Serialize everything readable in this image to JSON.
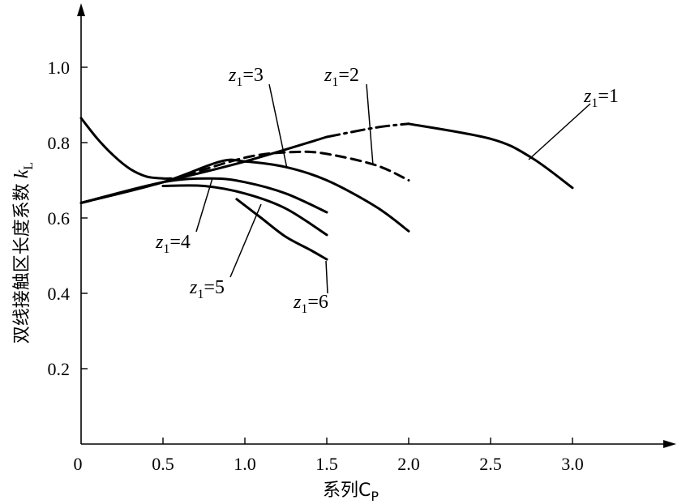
{
  "chart_data": {
    "type": "line",
    "xlabel": "系列C",
    "xlabel_sub": "P",
    "ylabel": "双线接触区长度系数",
    "ylabel_symbol": "k",
    "ylabel_sub": "L",
    "xlim": [
      0,
      3.0
    ],
    "ylim": [
      0,
      1.0
    ],
    "xticks": [
      0,
      0.5,
      1.0,
      1.5,
      2.0,
      2.5,
      3.0
    ],
    "xtick_labels": [
      "0",
      "0.5",
      "1.0",
      "1.5",
      "2.0",
      "2.5",
      "3.0"
    ],
    "yticks": [
      0.2,
      0.4,
      0.6,
      0.8,
      1.0
    ],
    "ytick_labels": [
      "0.2",
      "0.4",
      "0.6",
      "0.8",
      "1.0"
    ],
    "grid": false,
    "series": [
      {
        "name": "z1=1",
        "label_base": "z",
        "label_sub": "1",
        "label_rest": "=1",
        "style": "solid-dashdot-solid",
        "x": [
          0,
          0.5,
          1.0,
          1.5,
          1.8,
          2.0,
          2.5,
          2.75,
          3.0
        ],
        "y": [
          0.64,
          0.695,
          0.75,
          0.815,
          0.84,
          0.85,
          0.81,
          0.76,
          0.68
        ]
      },
      {
        "name": "z1=2",
        "label_base": "z",
        "label_sub": "1",
        "label_rest": "=2",
        "style": "dashed",
        "x": [
          0,
          0.5,
          1.0,
          1.3,
          1.5,
          1.8,
          2.0
        ],
        "y": [
          0.64,
          0.695,
          0.76,
          0.775,
          0.77,
          0.74,
          0.7
        ]
      },
      {
        "name": "z1=3",
        "label_base": "z",
        "label_sub": "1",
        "label_rest": "=3",
        "style": "solid",
        "x": [
          0,
          0.5,
          0.85,
          1.0,
          1.25,
          1.5,
          1.8,
          2.0
        ],
        "y": [
          0.64,
          0.695,
          0.75,
          0.75,
          0.735,
          0.7,
          0.63,
          0.565
        ]
      },
      {
        "name": "z1=4",
        "label_base": "z",
        "label_sub": "1",
        "label_rest": "=4",
        "style": "solid",
        "x": [
          0,
          0.5,
          0.8,
          1.0,
          1.25,
          1.5
        ],
        "y": [
          0.64,
          0.695,
          0.705,
          0.695,
          0.665,
          0.615
        ]
      },
      {
        "name": "z1=5",
        "label_base": "z",
        "label_sub": "1",
        "label_rest": "=5",
        "style": "solid",
        "x": [
          0.5,
          0.75,
          1.0,
          1.25,
          1.5
        ],
        "y": [
          0.685,
          0.685,
          0.665,
          0.625,
          0.555
        ]
      },
      {
        "name": "z1=6",
        "label_base": "z",
        "label_sub": "1",
        "label_rest": "=6",
        "style": "solid",
        "x": [
          0.95,
          1.1,
          1.25,
          1.4,
          1.5
        ],
        "y": [
          0.65,
          0.6,
          0.55,
          0.515,
          0.49
        ]
      },
      {
        "name": "",
        "style": "solid",
        "x": [
          0,
          0.1,
          0.2,
          0.3,
          0.4,
          0.5,
          0.55
        ],
        "y": [
          0.865,
          0.81,
          0.765,
          0.73,
          0.71,
          0.705,
          0.705
        ]
      }
    ]
  }
}
